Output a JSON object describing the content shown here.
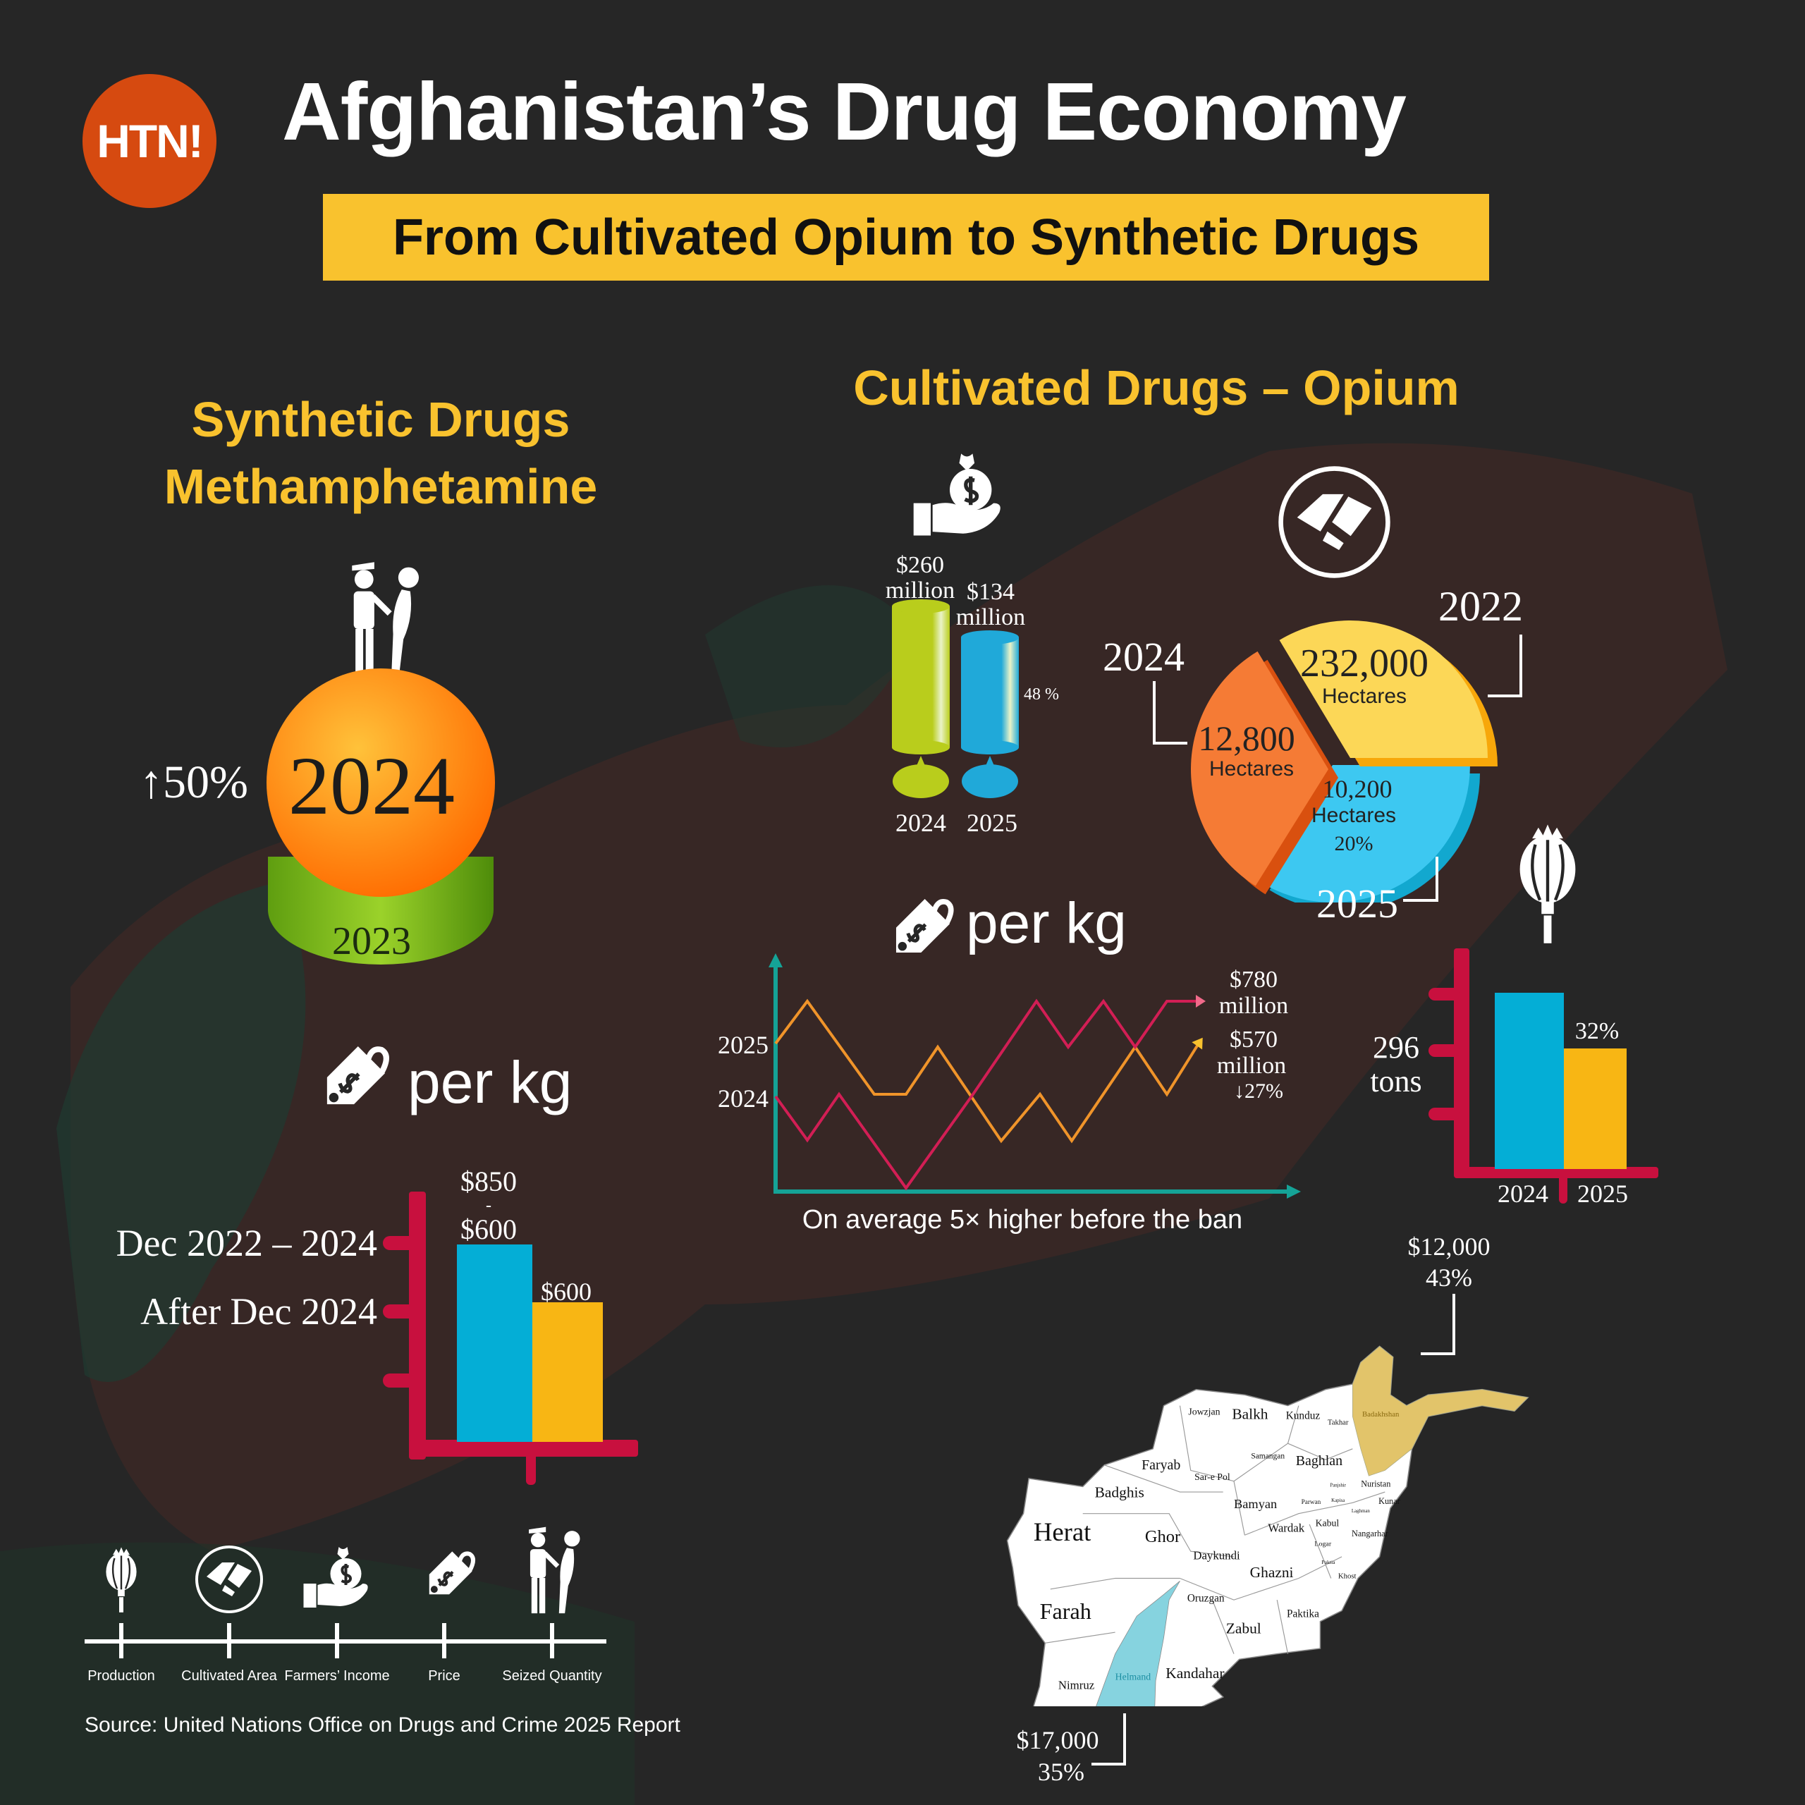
{
  "header": {
    "logo_text": "HTN!",
    "title": "Afghanistan’s Drug Economy",
    "subtitle": "From Cultivated Opium to Synthetic Drugs"
  },
  "synthetic": {
    "heading_line1": "Synthetic Drugs",
    "heading_line2": "Methamphetamine",
    "seizure": {
      "year_current": "2024",
      "year_previous": "2023",
      "change": "↑50%"
    },
    "per_kg_label": "per kg"
  },
  "opium": {
    "heading": "Cultivated Drugs – Opium",
    "per_kg_label": "per kg"
  },
  "map": {
    "badakhshan_annotation": {
      "price": "$12,000",
      "change": "43%"
    },
    "helmand_annotation": {
      "price": "$17,000",
      "change": "35%"
    },
    "provinces": [
      "Jowzjan",
      "Balkh",
      "Kunduz",
      "Takhar",
      "Badakhshan",
      "Samangan",
      "Baghlan",
      "Faryab",
      "Sar-e Pol",
      "Nuristan",
      "Panjshir",
      "Badghis",
      "Bamyan",
      "Parwan",
      "Kapisa",
      "Kunar",
      "Laghman",
      "Kabul",
      "Wardak",
      "Nangarhar",
      "Logar",
      "Herat",
      "Ghor",
      "Daykundi",
      "Paktia",
      "Ghazni",
      "Khost",
      "Oruzgan",
      "Farah",
      "Paktika",
      "Zabul",
      "Nimruz",
      "Helmand",
      "Kandahar"
    ],
    "highlight_colors": {
      "Badakhshan": "#E2C46A",
      "Helmand": "#86D3DF"
    }
  },
  "legend": {
    "items": [
      {
        "label": "Production",
        "icon": "poppy-icon"
      },
      {
        "label": "Cultivated Area",
        "icon": "land-icon"
      },
      {
        "label": "Farmers’ Income",
        "icon": "money-hand-icon"
      },
      {
        "label": "Price",
        "icon": "price-tag-icon"
      },
      {
        "label": "Seized Quantity",
        "icon": "police-arrest-icon"
      }
    ]
  },
  "source": "Source: United Nations Office on Drugs and Crime 2025 Report",
  "colors": {
    "background": "#262626",
    "accent_yellow": "#F9C22E",
    "logo_orange": "#D64A10",
    "axis_red": "#C8103E",
    "bar_blue": "#04AED6",
    "bar_yellow": "#F8B614",
    "line_teal": "#15A397"
  },
  "chart_data": [
    {
      "id": "meth-price",
      "type": "bar",
      "categories": [
        "Dec 2022 – 2024",
        "After Dec 2024"
      ],
      "values": [
        850,
        600
      ],
      "value_labels": [
        [
          "$850",
          "-",
          "$600"
        ],
        [
          "$600"
        ]
      ],
      "colors": [
        "#04AED6",
        "#F8B614"
      ],
      "ylim": [
        0,
        1000
      ]
    },
    {
      "id": "farmers-income",
      "type": "bar",
      "categories": [
        "2024",
        "2025"
      ],
      "values": [
        260,
        134
      ],
      "value_labels": [
        [
          "$260",
          "million"
        ],
        [
          "$134",
          "million"
        ]
      ],
      "change_label": "48 %",
      "colors": [
        "#B9CD1C",
        "#20A9D9"
      ]
    },
    {
      "id": "cultivated-area",
      "type": "pie",
      "slices": [
        {
          "label": "2022",
          "value": 232000,
          "value_label": "232,000",
          "unit": "Hectares",
          "color": "#FCD757"
        },
        {
          "label": "2024",
          "value": 12800,
          "value_label": "12,800",
          "unit": "Hectares",
          "color": "#F57B35"
        },
        {
          "label": "2025",
          "value": 10200,
          "value_label": "10,200",
          "unit": "Hectares",
          "color": "#3DC8F1",
          "change": "20%"
        }
      ]
    },
    {
      "id": "opium-price",
      "type": "line",
      "series": [
        {
          "name": "2025",
          "color": "#F0942A",
          "end_label": [
            "$570",
            "million",
            "↓27%"
          ]
        },
        {
          "name": "2024",
          "color": "#D21E55",
          "end_label": [
            "$780",
            "million"
          ]
        }
      ],
      "caption": "On average 5× higher before the ban"
    },
    {
      "id": "production",
      "type": "bar",
      "categories": [
        "2024",
        "2025"
      ],
      "values": [
        296,
        202
      ],
      "value_labels": [
        [
          "296",
          "tons"
        ],
        [
          "32%"
        ]
      ],
      "colors": [
        "#04AED6",
        "#F8B614"
      ]
    }
  ]
}
